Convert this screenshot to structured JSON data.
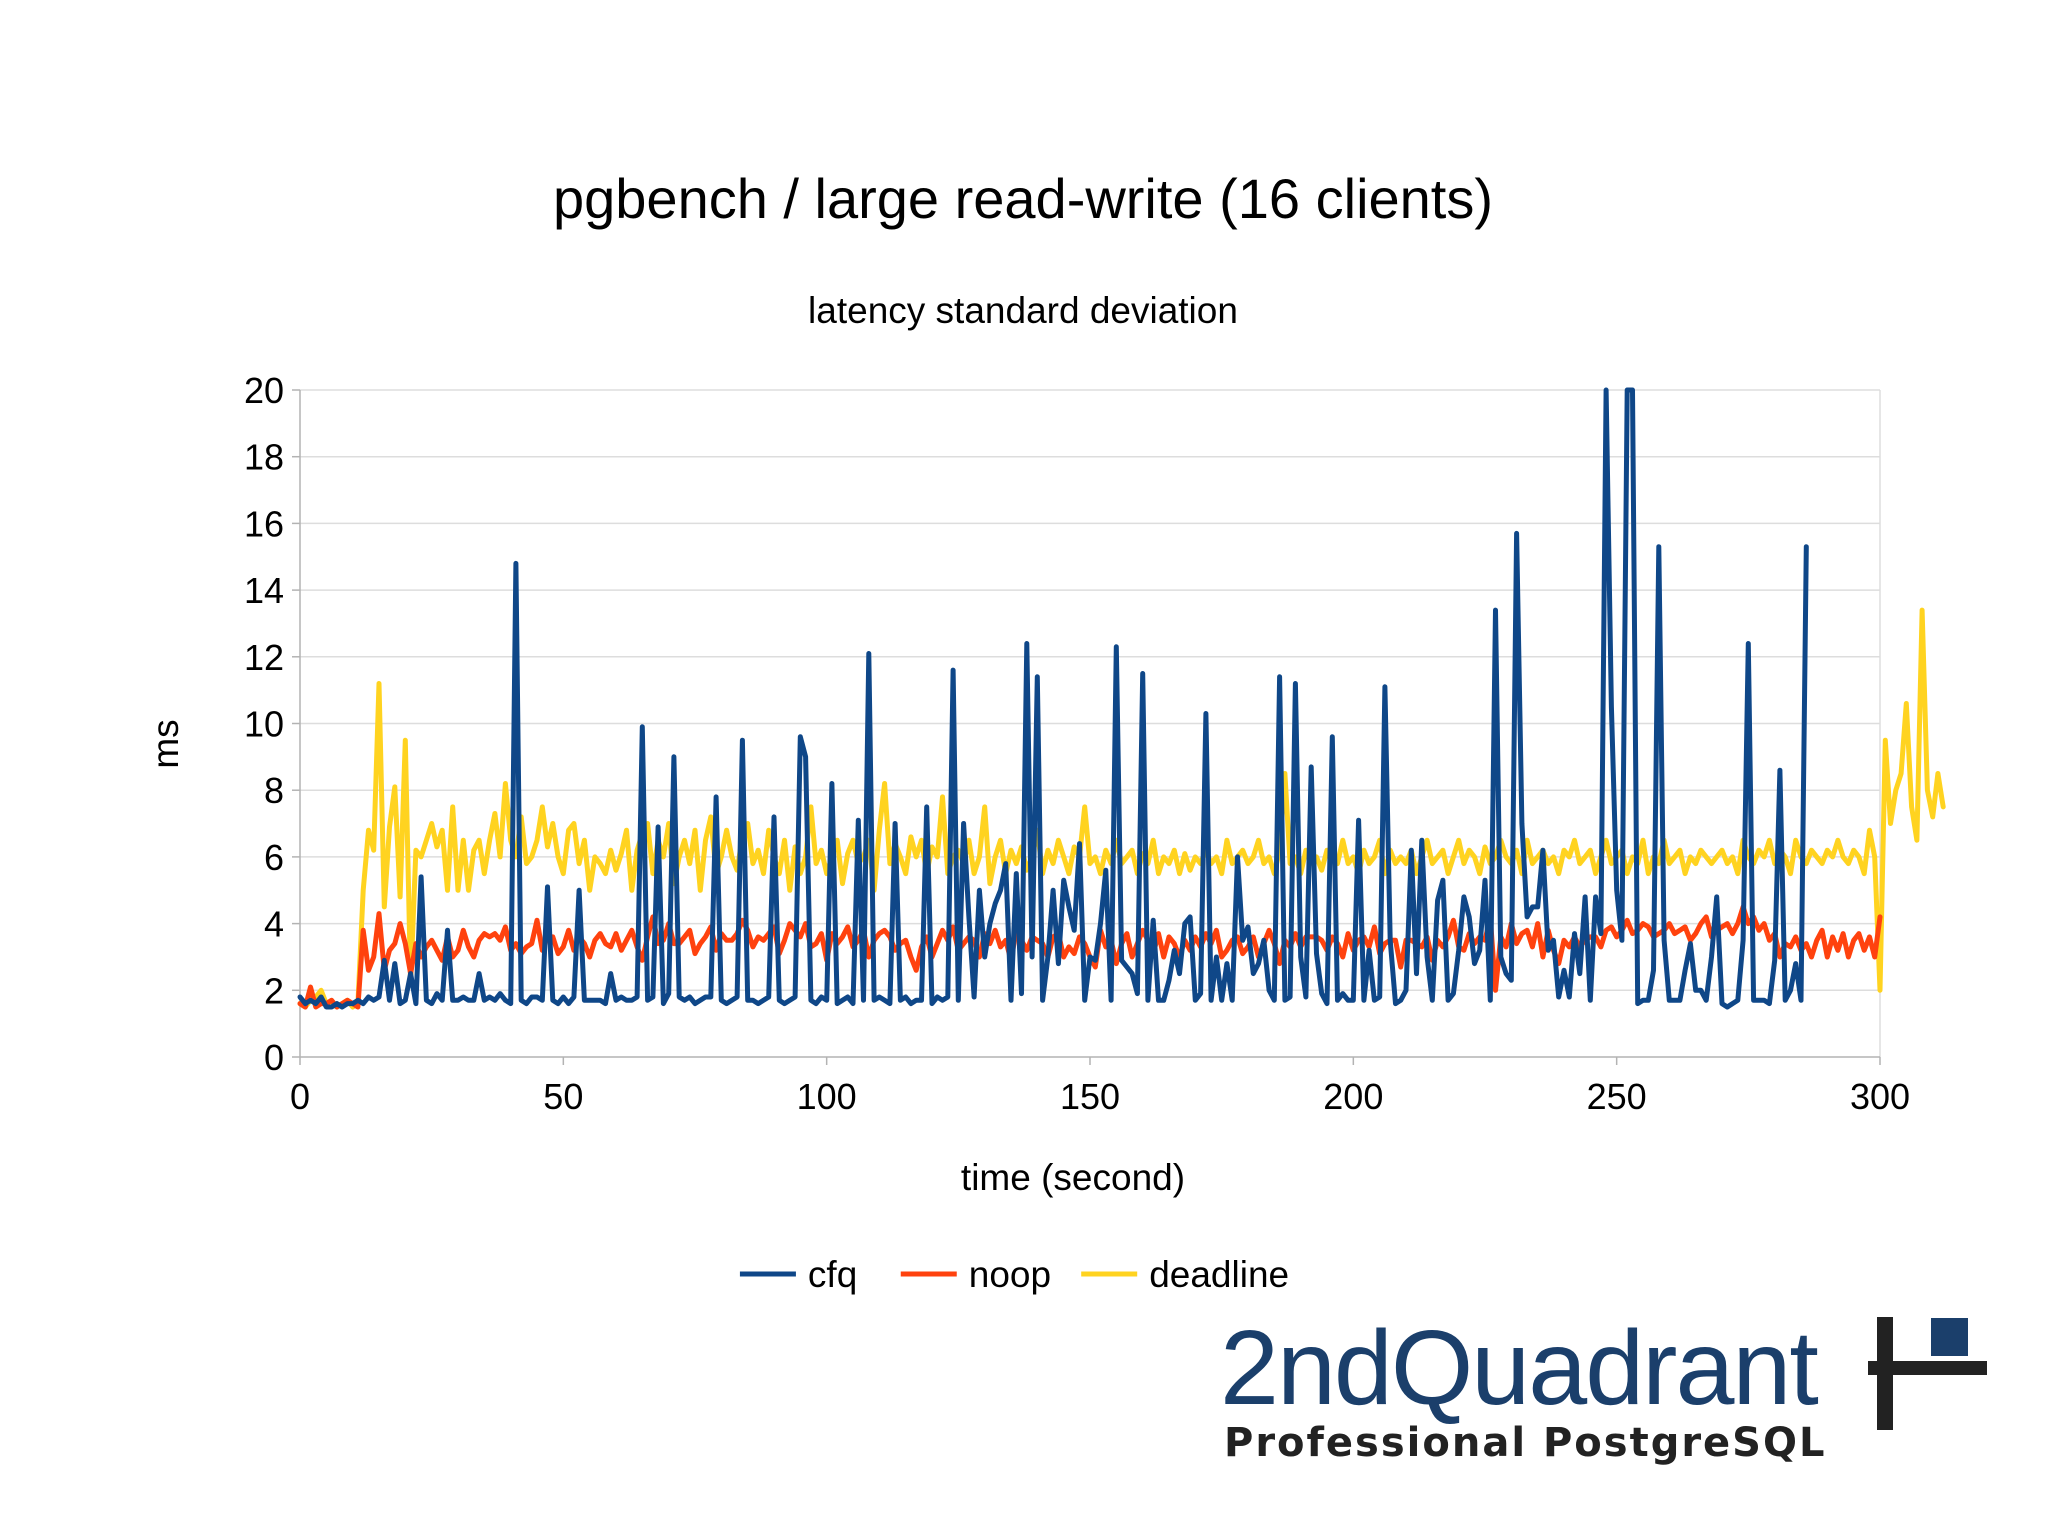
{
  "chart_data": {
    "type": "line",
    "title": "pgbench / large read-write (16 clients)",
    "subtitle": "latency standard deviation",
    "xlabel": "time (second)",
    "ylabel": "ms",
    "xlim": [
      0,
      300
    ],
    "ylim": [
      0,
      20
    ],
    "xticks": [
      0,
      50,
      100,
      150,
      200,
      250,
      300
    ],
    "yticks": [
      0,
      2,
      4,
      6,
      8,
      10,
      12,
      14,
      16,
      18,
      20
    ],
    "grid": "horizontal",
    "legend": "bottom",
    "sample_interval": 1,
    "series": [
      {
        "name": "cfq",
        "color": "#0f4788",
        "values": [
          1.8,
          1.6,
          1.7,
          1.6,
          1.8,
          1.5,
          1.5,
          1.6,
          1.5,
          1.6,
          1.6,
          1.7,
          1.6,
          1.8,
          1.7,
          1.8,
          2.9,
          1.7,
          2.8,
          1.6,
          1.7,
          2.5,
          1.6,
          5.4,
          1.7,
          1.6,
          1.9,
          1.7,
          3.8,
          1.7,
          1.7,
          1.8,
          1.7,
          1.7,
          2.5,
          1.7,
          1.8,
          1.7,
          1.9,
          1.7,
          1.6,
          14.8,
          1.7,
          1.6,
          1.8,
          1.8,
          1.7,
          5.1,
          1.7,
          1.6,
          1.8,
          1.6,
          1.8,
          5.0,
          1.7,
          1.7,
          1.7,
          1.7,
          1.6,
          2.5,
          1.7,
          1.8,
          1.7,
          1.7,
          1.8,
          9.9,
          1.7,
          1.8,
          6.9,
          1.6,
          1.9,
          9.0,
          1.8,
          1.7,
          1.8,
          1.6,
          1.7,
          1.8,
          1.8,
          7.8,
          1.7,
          1.6,
          1.7,
          1.8,
          9.5,
          1.7,
          1.7,
          1.6,
          1.7,
          1.8,
          7.2,
          1.7,
          1.6,
          1.7,
          1.8,
          9.6,
          9.0,
          1.7,
          1.6,
          1.8,
          1.7,
          8.2,
          1.6,
          1.7,
          1.8,
          1.6,
          7.1,
          1.7,
          12.1,
          1.7,
          1.8,
          1.7,
          1.6,
          7.0,
          1.7,
          1.8,
          1.6,
          1.7,
          1.7,
          7.5,
          1.6,
          1.8,
          1.7,
          1.8,
          11.6,
          1.7,
          7.0,
          4.2,
          1.8,
          5.0,
          3.0,
          4.0,
          4.6,
          5.0,
          5.8,
          1.7,
          5.5,
          1.9,
          12.4,
          3.0,
          11.4,
          1.7,
          3.0,
          5.0,
          2.8,
          5.3,
          4.5,
          3.8,
          6.4,
          1.7,
          3.0,
          2.9,
          4.0,
          5.6,
          1.7,
          12.3,
          2.9,
          2.7,
          2.5,
          1.9,
          11.5,
          1.7,
          4.1,
          1.7,
          1.7,
          2.3,
          3.2,
          2.5,
          4.0,
          4.2,
          1.7,
          1.9,
          10.3,
          1.7,
          3.0,
          1.7,
          2.8,
          1.7,
          6.0,
          3.5,
          3.9,
          2.5,
          2.8,
          3.5,
          2.0,
          1.7,
          11.4,
          1.7,
          1.8,
          11.2,
          3.0,
          1.8,
          8.7,
          3.1,
          1.9,
          1.6,
          9.6,
          1.7,
          1.9,
          1.7,
          1.7,
          7.1,
          1.7,
          3.2,
          1.7,
          1.8,
          11.1,
          3.5,
          1.6,
          1.7,
          2.0,
          6.2,
          2.5,
          6.5,
          3.0,
          1.7,
          4.7,
          5.3,
          1.7,
          1.9,
          3.2,
          4.8,
          4.2,
          2.8,
          3.2,
          5.3,
          1.7,
          13.4,
          3.0,
          2.5,
          2.3,
          15.7,
          7.0,
          4.2,
          4.5,
          4.5,
          6.2,
          3.2,
          3.5,
          1.8,
          2.6,
          1.8,
          3.7,
          2.5,
          4.8,
          1.7,
          4.8,
          3.7,
          20,
          10.5,
          5.0,
          3.5,
          20,
          20,
          1.6,
          1.7,
          1.7,
          2.6,
          15.3,
          3.5,
          1.7,
          1.7,
          1.7,
          2.6,
          3.4,
          2.0,
          2.0,
          1.7,
          3.0,
          4.8,
          1.6,
          1.5,
          1.6,
          1.7,
          3.5,
          12.4,
          1.7,
          1.7,
          1.7,
          1.6,
          2.9,
          8.6,
          1.7,
          2.0,
          2.8,
          1.7,
          15.3
        ]
      },
      {
        "name": "noop",
        "color": "#ff420e",
        "values": [
          1.6,
          1.5,
          2.1,
          1.5,
          1.6,
          1.6,
          1.7,
          1.5,
          1.6,
          1.7,
          1.6,
          1.5,
          3.8,
          2.6,
          3.0,
          4.3,
          2.6,
          3.2,
          3.4,
          4.0,
          3.4,
          2.5,
          3.4,
          3.0,
          3.3,
          3.5,
          3.2,
          2.9,
          3.6,
          3.0,
          3.2,
          3.8,
          3.3,
          3.0,
          3.5,
          3.7,
          3.6,
          3.7,
          3.5,
          3.9,
          3.2,
          3.4,
          3.1,
          3.3,
          3.4,
          4.1,
          3.2,
          3.6,
          3.6,
          3.1,
          3.3,
          3.8,
          3.2,
          3.6,
          3.4,
          3.0,
          3.5,
          3.7,
          3.4,
          3.3,
          3.7,
          3.2,
          3.5,
          3.8,
          3.3,
          2.9,
          3.6,
          4.2,
          3.4,
          3.5,
          4.0,
          3.4,
          3.4,
          3.6,
          3.8,
          3.1,
          3.4,
          3.6,
          3.9,
          3.2,
          3.7,
          3.5,
          3.5,
          3.7,
          4.1,
          3.8,
          3.3,
          3.6,
          3.5,
          3.7,
          3.9,
          3.1,
          3.5,
          4.0,
          3.8,
          3.6,
          4.0,
          3.3,
          3.4,
          3.7,
          2.9,
          3.7,
          3.4,
          3.6,
          3.9,
          3.3,
          3.5,
          3.8,
          3.0,
          3.5,
          3.7,
          3.8,
          3.6,
          3.2,
          3.4,
          3.5,
          3.0,
          2.6,
          3.3,
          3.6,
          3.0,
          3.4,
          3.8,
          3.5,
          3.9,
          3.2,
          3.4,
          3.6,
          3.5,
          3.0,
          3.7,
          3.4,
          3.8,
          3.3,
          3.5,
          2.9,
          3.8,
          3.5,
          3.2,
          3.6,
          3.5,
          3.4,
          3.0,
          3.6,
          3.7,
          3.0,
          3.3,
          3.1,
          3.6,
          3.4,
          3.0,
          2.7,
          3.8,
          3.3,
          3.5,
          2.8,
          3.4,
          3.7,
          3.0,
          3.4,
          3.8,
          3.5,
          3.1,
          3.7,
          3.0,
          3.6,
          3.4,
          3.0,
          3.5,
          3.2,
          3.6,
          3.3,
          3.7,
          3.4,
          3.8,
          3.0,
          3.2,
          3.5,
          3.6,
          3.1,
          3.3,
          3.6,
          3.0,
          3.4,
          3.8,
          3.4,
          2.8,
          3.5,
          3.3,
          3.7,
          3.3,
          3.6,
          3.6,
          3.6,
          3.5,
          3.2,
          3.6,
          3.4,
          3.0,
          3.7,
          3.2,
          3.5,
          3.6,
          3.3,
          3.9,
          3.1,
          3.4,
          3.5,
          3.5,
          2.7,
          3.5,
          3.5,
          3.4,
          3.3,
          3.6,
          2.9,
          3.5,
          3.3,
          3.6,
          4.1,
          3.3,
          3.2,
          3.7,
          3.4,
          3.6,
          3.5,
          4.2,
          2.0,
          3.6,
          3.3,
          4.0,
          3.4,
          3.7,
          3.8,
          3.3,
          4.0,
          3.0,
          3.8,
          3.2,
          2.8,
          3.5,
          3.3,
          3.6,
          3.3,
          3.5,
          3.6,
          3.6,
          3.3,
          3.8,
          3.9,
          3.6,
          3.8,
          4.1,
          3.7,
          3.8,
          4.0,
          3.9,
          3.6,
          3.7,
          3.8,
          4.0,
          3.7,
          3.8,
          3.9,
          3.5,
          3.7,
          4.0,
          4.2,
          3.6,
          3.8,
          3.9,
          4.0,
          3.7,
          4.0,
          4.5,
          4.0,
          4.2,
          3.8,
          4.0,
          3.5,
          3.7,
          3.0,
          3.4,
          3.3,
          3.6,
          3.2,
          3.4,
          3.0,
          3.5,
          3.8,
          3.0,
          3.6,
          3.2,
          3.7,
          3.0,
          3.5,
          3.7,
          3.2,
          3.6,
          3.0,
          4.2
        ]
      },
      {
        "name": "deadline",
        "color": "#ffd320",
        "values": [
          1.6,
          1.5,
          1.7,
          1.8,
          2.0,
          1.6,
          1.6,
          1.5,
          1.6,
          1.7,
          1.5,
          1.6,
          5.0,
          6.8,
          6.2,
          11.2,
          4.5,
          6.9,
          8.1,
          4.8,
          9.5,
          2.2,
          6.2,
          6.0,
          6.5,
          7.0,
          6.3,
          6.8,
          5.0,
          7.5,
          5.0,
          6.5,
          5.0,
          6.2,
          6.5,
          5.5,
          6.5,
          7.3,
          6.0,
          8.2,
          6.5,
          6.0,
          7.2,
          5.8,
          6.0,
          6.5,
          7.5,
          6.3,
          7.0,
          6.0,
          5.5,
          6.8,
          7.0,
          5.8,
          6.5,
          5.0,
          6.0,
          5.8,
          5.5,
          6.2,
          5.6,
          6.1,
          6.8,
          5.0,
          6.2,
          6.7,
          7.0,
          5.5,
          6.5,
          6.0,
          7.0,
          5.2,
          6.0,
          6.5,
          5.8,
          6.8,
          5.0,
          6.5,
          7.2,
          5.5,
          6.0,
          6.8,
          6.0,
          5.6,
          6.6,
          7.0,
          5.8,
          6.2,
          5.5,
          6.8,
          6.0,
          5.5,
          6.5,
          5.0,
          6.3,
          5.5,
          6.0,
          7.5,
          5.8,
          6.2,
          5.5,
          6.0,
          6.5,
          5.2,
          6.1,
          6.5,
          5.8,
          6.0,
          6.5,
          5.0,
          6.8,
          8.2,
          5.8,
          6.4,
          6.0,
          5.5,
          6.6,
          6.0,
          6.5,
          5.5,
          6.3,
          6.0,
          7.8,
          5.5,
          6.0,
          6.2,
          5.8,
          6.5,
          5.5,
          6.0,
          7.5,
          5.2,
          6.0,
          6.5,
          5.5,
          6.2,
          5.8,
          6.3,
          5.6,
          6.0,
          6.8,
          5.5,
          6.2,
          5.8,
          6.5,
          6.0,
          5.5,
          6.3,
          6.0,
          7.5,
          5.8,
          6.0,
          5.5,
          6.2,
          5.8,
          6.5,
          5.8,
          6.0,
          6.2,
          5.5,
          6.1,
          5.8,
          6.5,
          5.5,
          6.0,
          5.8,
          6.2,
          5.5,
          6.1,
          5.6,
          6.0,
          5.8,
          6.2,
          5.8,
          6.0,
          5.5,
          6.5,
          5.8,
          6.0,
          6.2,
          5.8,
          6.0,
          6.5,
          5.8,
          6.0,
          5.5,
          6.2,
          8.5,
          5.8,
          6.0,
          5.5,
          6.2,
          5.8,
          6.0,
          5.6,
          6.2,
          6.0,
          5.8,
          6.5,
          5.8,
          6.0,
          5.5,
          6.2,
          5.8,
          6.0,
          6.5,
          5.5,
          6.2,
          5.8,
          6.0,
          5.8,
          6.2,
          5.5,
          6.0,
          6.5,
          5.8,
          6.0,
          6.2,
          5.5,
          6.0,
          6.5,
          5.8,
          6.2,
          6.0,
          5.5,
          6.3,
          5.8,
          6.0,
          6.5,
          6.0,
          5.8,
          6.2,
          5.5,
          6.5,
          5.8,
          6.0,
          6.2,
          5.8,
          6.0,
          5.5,
          6.2,
          6.0,
          6.5,
          5.8,
          6.0,
          6.2,
          5.5,
          6.0,
          6.5,
          5.8,
          6.0,
          6.2,
          5.5,
          6.0,
          5.8,
          6.5,
          5.5,
          6.0,
          5.8,
          6.5,
          5.8,
          6.0,
          6.2,
          5.5,
          6.0,
          5.8,
          6.2,
          6.0,
          5.8,
          6.0,
          6.2,
          5.8,
          6.0,
          5.5,
          6.5,
          6.0,
          5.8,
          6.2,
          6.0,
          6.5,
          5.8,
          6.2,
          6.0,
          5.5,
          6.5,
          6.0,
          5.8,
          6.2,
          6.0,
          5.8,
          6.2,
          6.0,
          6.5,
          6.0,
          5.8,
          6.2,
          6.0,
          5.5,
          6.8,
          6.0,
          2.0,
          9.5,
          7.0,
          8.0,
          8.5,
          10.6,
          7.5,
          6.5,
          13.4,
          8.0,
          7.2,
          8.5,
          7.5
        ]
      }
    ]
  },
  "logo": {
    "wordmark": "2ndQuadrant",
    "tagline": "Professional PostgreSQL"
  }
}
